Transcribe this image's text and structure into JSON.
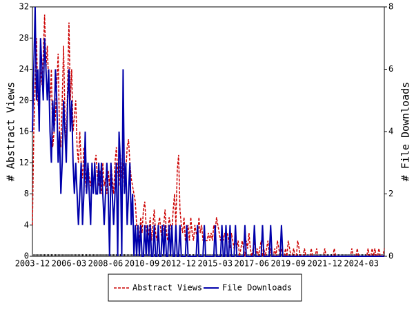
{
  "chart_data": {
    "type": "line",
    "categories": [
      "2003-12",
      null,
      null,
      null,
      null,
      null,
      null,
      null,
      null,
      null,
      null,
      null,
      null,
      null,
      null,
      null,
      null,
      null,
      null,
      null,
      null,
      null,
      null,
      null,
      null,
      null,
      null,
      "2006-03",
      null,
      null,
      null,
      null,
      null,
      null,
      null,
      null,
      null,
      null,
      null,
      null,
      null,
      null,
      null,
      null,
      null,
      null,
      null,
      null,
      null,
      null,
      null,
      null,
      null,
      null,
      "2008-06",
      null,
      null,
      null,
      null,
      null,
      null,
      null,
      null,
      null,
      null,
      null,
      null,
      null,
      null,
      null,
      null,
      null,
      null,
      null,
      null,
      null,
      null,
      null,
      null,
      null,
      null,
      "2010-09",
      null,
      null,
      null,
      null,
      null,
      null,
      null,
      null,
      null,
      null,
      null,
      null,
      null,
      null,
      null,
      null,
      null,
      null,
      null,
      null,
      null,
      null,
      null,
      null,
      null,
      null,
      "2012-12",
      null,
      null,
      null,
      null,
      null,
      null,
      null,
      null,
      null,
      null,
      null,
      null,
      null,
      null,
      null,
      null,
      null,
      null,
      null,
      null,
      null,
      null,
      null,
      null,
      null,
      null,
      "2015-03",
      null,
      null,
      null,
      null,
      null,
      null,
      null,
      null,
      null,
      null,
      null,
      null,
      null,
      null,
      null,
      null,
      null,
      null,
      null,
      null,
      null,
      null,
      null,
      null,
      null,
      null,
      "2017-06",
      null,
      null,
      null,
      null,
      null,
      null,
      null,
      null,
      null,
      null,
      null,
      null,
      null,
      null,
      null,
      null,
      null,
      null,
      null,
      null,
      null,
      null,
      null,
      null,
      null,
      null,
      "2019-09",
      null,
      null,
      null,
      null,
      null,
      null,
      null,
      null,
      null,
      null,
      null,
      null,
      null,
      null,
      null,
      null,
      null,
      null,
      null,
      null,
      null,
      null,
      null,
      null,
      null,
      null,
      "2021-12",
      null,
      null,
      null,
      null,
      null,
      null,
      null,
      null,
      null,
      null,
      null,
      null,
      null,
      null,
      null,
      null,
      null,
      null,
      null,
      null,
      null,
      null,
      null,
      null,
      null,
      null,
      "2024-03",
      null,
      null,
      null,
      null,
      null,
      null,
      null,
      null,
      null,
      null,
      null,
      null,
      null,
      null,
      null,
      null,
      null
    ],
    "ylabel": "# Abstract Views",
    "y2label": "# File Downloads",
    "ylim": [
      0,
      32
    ],
    "yticks": [
      0,
      4,
      8,
      12,
      16,
      20,
      24,
      28,
      32
    ],
    "y2lim": [
      0,
      8
    ],
    "y2ticks": [
      0,
      2,
      4,
      6,
      8
    ],
    "series": [
      {
        "name": "Abstract Views",
        "color": "#cc0000",
        "dash": true,
        "values": [
          4,
          16,
          22,
          28,
          20,
          18,
          24,
          22,
          26,
          31,
          24,
          27,
          22,
          20,
          24,
          14,
          16,
          18,
          22,
          26,
          16,
          14,
          20,
          27,
          18,
          14,
          22,
          30,
          20,
          24,
          16,
          18,
          20,
          14,
          12,
          16,
          12,
          10,
          14,
          10,
          8,
          12,
          10,
          9,
          11,
          8,
          12,
          13,
          10,
          9,
          11,
          8,
          12,
          9,
          10,
          8,
          11,
          9,
          12,
          10,
          8,
          12,
          14,
          11,
          9,
          13,
          10,
          12,
          8,
          11,
          14,
          15,
          12,
          10,
          9,
          8,
          7,
          4,
          3,
          2,
          5,
          3,
          6,
          7,
          4,
          2,
          3,
          5,
          2,
          4,
          6,
          3,
          2,
          4,
          5,
          3,
          2,
          4,
          6,
          3,
          2,
          5,
          4,
          3,
          6,
          8,
          4,
          11,
          13,
          6,
          4,
          3,
          5,
          2,
          3,
          4,
          2,
          5,
          3,
          2,
          4,
          3,
          2,
          5,
          3,
          4,
          2,
          3,
          2,
          2,
          3,
          2,
          3,
          2,
          4,
          3,
          5,
          4,
          3,
          2,
          3,
          2,
          3,
          2,
          3,
          2,
          1,
          3,
          2,
          1,
          2,
          1,
          2,
          0,
          1,
          2,
          1,
          0,
          2,
          1,
          3,
          1,
          0,
          1,
          2,
          0,
          1,
          0,
          1,
          2,
          0,
          1,
          0,
          1,
          2,
          0,
          1,
          0,
          0,
          1,
          0,
          2,
          1,
          0,
          1,
          0,
          0,
          1,
          0,
          2,
          1,
          0,
          0,
          1,
          0,
          0,
          2,
          1,
          0,
          0,
          0,
          1,
          0,
          0,
          0,
          0,
          1,
          0,
          0,
          0,
          1,
          0,
          0,
          0,
          0,
          0,
          1,
          0,
          0,
          0,
          0,
          0,
          0,
          1,
          0,
          0,
          0,
          0,
          0,
          0,
          0,
          0,
          0,
          0,
          0,
          0,
          1,
          0,
          0,
          0,
          1,
          0,
          0,
          0,
          0,
          0,
          0,
          0,
          1,
          0,
          0,
          1,
          0,
          1,
          0,
          0,
          1,
          0,
          0,
          0,
          1
        ]
      },
      {
        "name": "File Downloads",
        "color": "#0000aa",
        "axis": "y2",
        "values": [
          4,
          6,
          8,
          5,
          6,
          4,
          7,
          6,
          5,
          7,
          6,
          5,
          6,
          4,
          3,
          5,
          4,
          6,
          5,
          3,
          4,
          2,
          3,
          5,
          4,
          3,
          5,
          6,
          4,
          5,
          3,
          2,
          3,
          2,
          1,
          2,
          3,
          1,
          2,
          4,
          2,
          3,
          2,
          1,
          3,
          2,
          3,
          2,
          2,
          3,
          2,
          3,
          2,
          1,
          2,
          3,
          2,
          0,
          3,
          2,
          1,
          2,
          3,
          0,
          4,
          3,
          0,
          6,
          2,
          3,
          1,
          2,
          3,
          1,
          2,
          0,
          1,
          0,
          1,
          0,
          1,
          0,
          0,
          1,
          0,
          1,
          0,
          1,
          0,
          0,
          1,
          0,
          0,
          1,
          0,
          0,
          1,
          0,
          1,
          0,
          0,
          1,
          0,
          1,
          0,
          0,
          1,
          0,
          0,
          1,
          0,
          0,
          0,
          0,
          1,
          0,
          0,
          0,
          0,
          0,
          0,
          0,
          1,
          0,
          0,
          0,
          0,
          1,
          0,
          0,
          0,
          0,
          0,
          0,
          0,
          1,
          0,
          0,
          0,
          0,
          1,
          0,
          0,
          1,
          0,
          0,
          1,
          0,
          0,
          0,
          1,
          0,
          0,
          0,
          0,
          0,
          0,
          1,
          0,
          0,
          0,
          0,
          0,
          0,
          1,
          0,
          0,
          0,
          0,
          0,
          1,
          0,
          0,
          0,
          0,
          0,
          1,
          0,
          0,
          0,
          0,
          0,
          0,
          0,
          1,
          0,
          0,
          0,
          0,
          0,
          0,
          0,
          0,
          0,
          0,
          0,
          0,
          0,
          0,
          0,
          0,
          0,
          0,
          0,
          0,
          0,
          0,
          0,
          0,
          0,
          0,
          0,
          0,
          0,
          0,
          0,
          0,
          0,
          0,
          0,
          0,
          0,
          0,
          0,
          0,
          0,
          0,
          0,
          0,
          0,
          0,
          0,
          0,
          0,
          0,
          0,
          0,
          0,
          0,
          0,
          0,
          0,
          0,
          0,
          0,
          0,
          0,
          0,
          0,
          0,
          0,
          0,
          0,
          0,
          0,
          0,
          0,
          0,
          0,
          0,
          0
        ]
      }
    ]
  }
}
